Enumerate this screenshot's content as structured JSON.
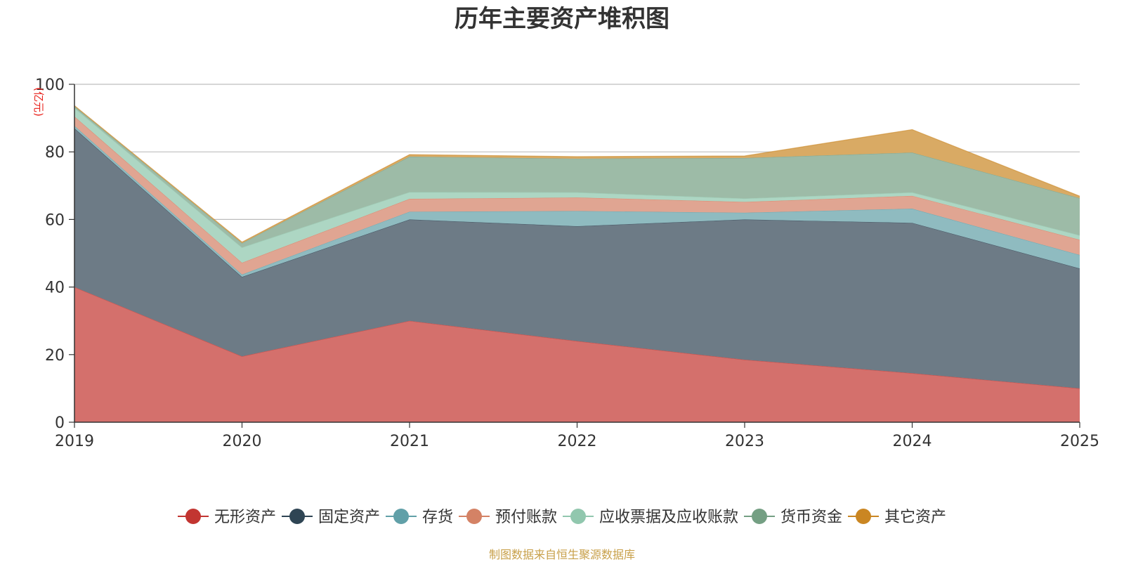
{
  "chart_data": {
    "type": "area",
    "stacked": true,
    "title": "历年主要资产堆积图",
    "unit_label": "(亿元)",
    "source": "制图数据来自恒生聚源数据库",
    "categories": [
      "2019",
      "2020",
      "2021",
      "2022",
      "2023",
      "2024",
      "2025"
    ],
    "ylim": [
      0,
      100
    ],
    "yticks": [
      0,
      20,
      40,
      60,
      80,
      100
    ],
    "grid": true,
    "legend_position": "bottom",
    "series": [
      {
        "name": "无形资产",
        "values": [
          40,
          19.5,
          30,
          24,
          18.5,
          14.5,
          10
        ],
        "color": "#c23531",
        "fill": "#d4706c"
      },
      {
        "name": "固定资产",
        "values": [
          47,
          23.5,
          30,
          34,
          41.5,
          44.5,
          35.5
        ],
        "color": "#2f4554",
        "fill": "#6d7b86"
      },
      {
        "name": "存货",
        "values": [
          0.7,
          0.7,
          2.3,
          4.5,
          2,
          4.2,
          4
        ],
        "color": "#61a0a8",
        "fill": "#8fbbc0"
      },
      {
        "name": "预付账款",
        "values": [
          2.8,
          3.5,
          3.8,
          4,
          3.2,
          3.8,
          4.5
        ],
        "color": "#d48265",
        "fill": "#e0a592"
      },
      {
        "name": "应收票据及应收账款",
        "values": [
          2.5,
          4.5,
          2,
          1.5,
          1,
          1,
          1.3
        ],
        "color": "#91c7ae",
        "fill": "#add6c3"
      },
      {
        "name": "货币资金",
        "values": [
          0.5,
          1.3,
          10.5,
          10,
          12,
          11.8,
          11
        ],
        "color": "#749f83",
        "fill": "#9dbba7"
      },
      {
        "name": "其它资产",
        "values": [
          0.2,
          0.3,
          0.6,
          0.6,
          0.6,
          6.8,
          0.6
        ],
        "color": "#ca8622",
        "fill": "#d9aa64"
      }
    ]
  }
}
